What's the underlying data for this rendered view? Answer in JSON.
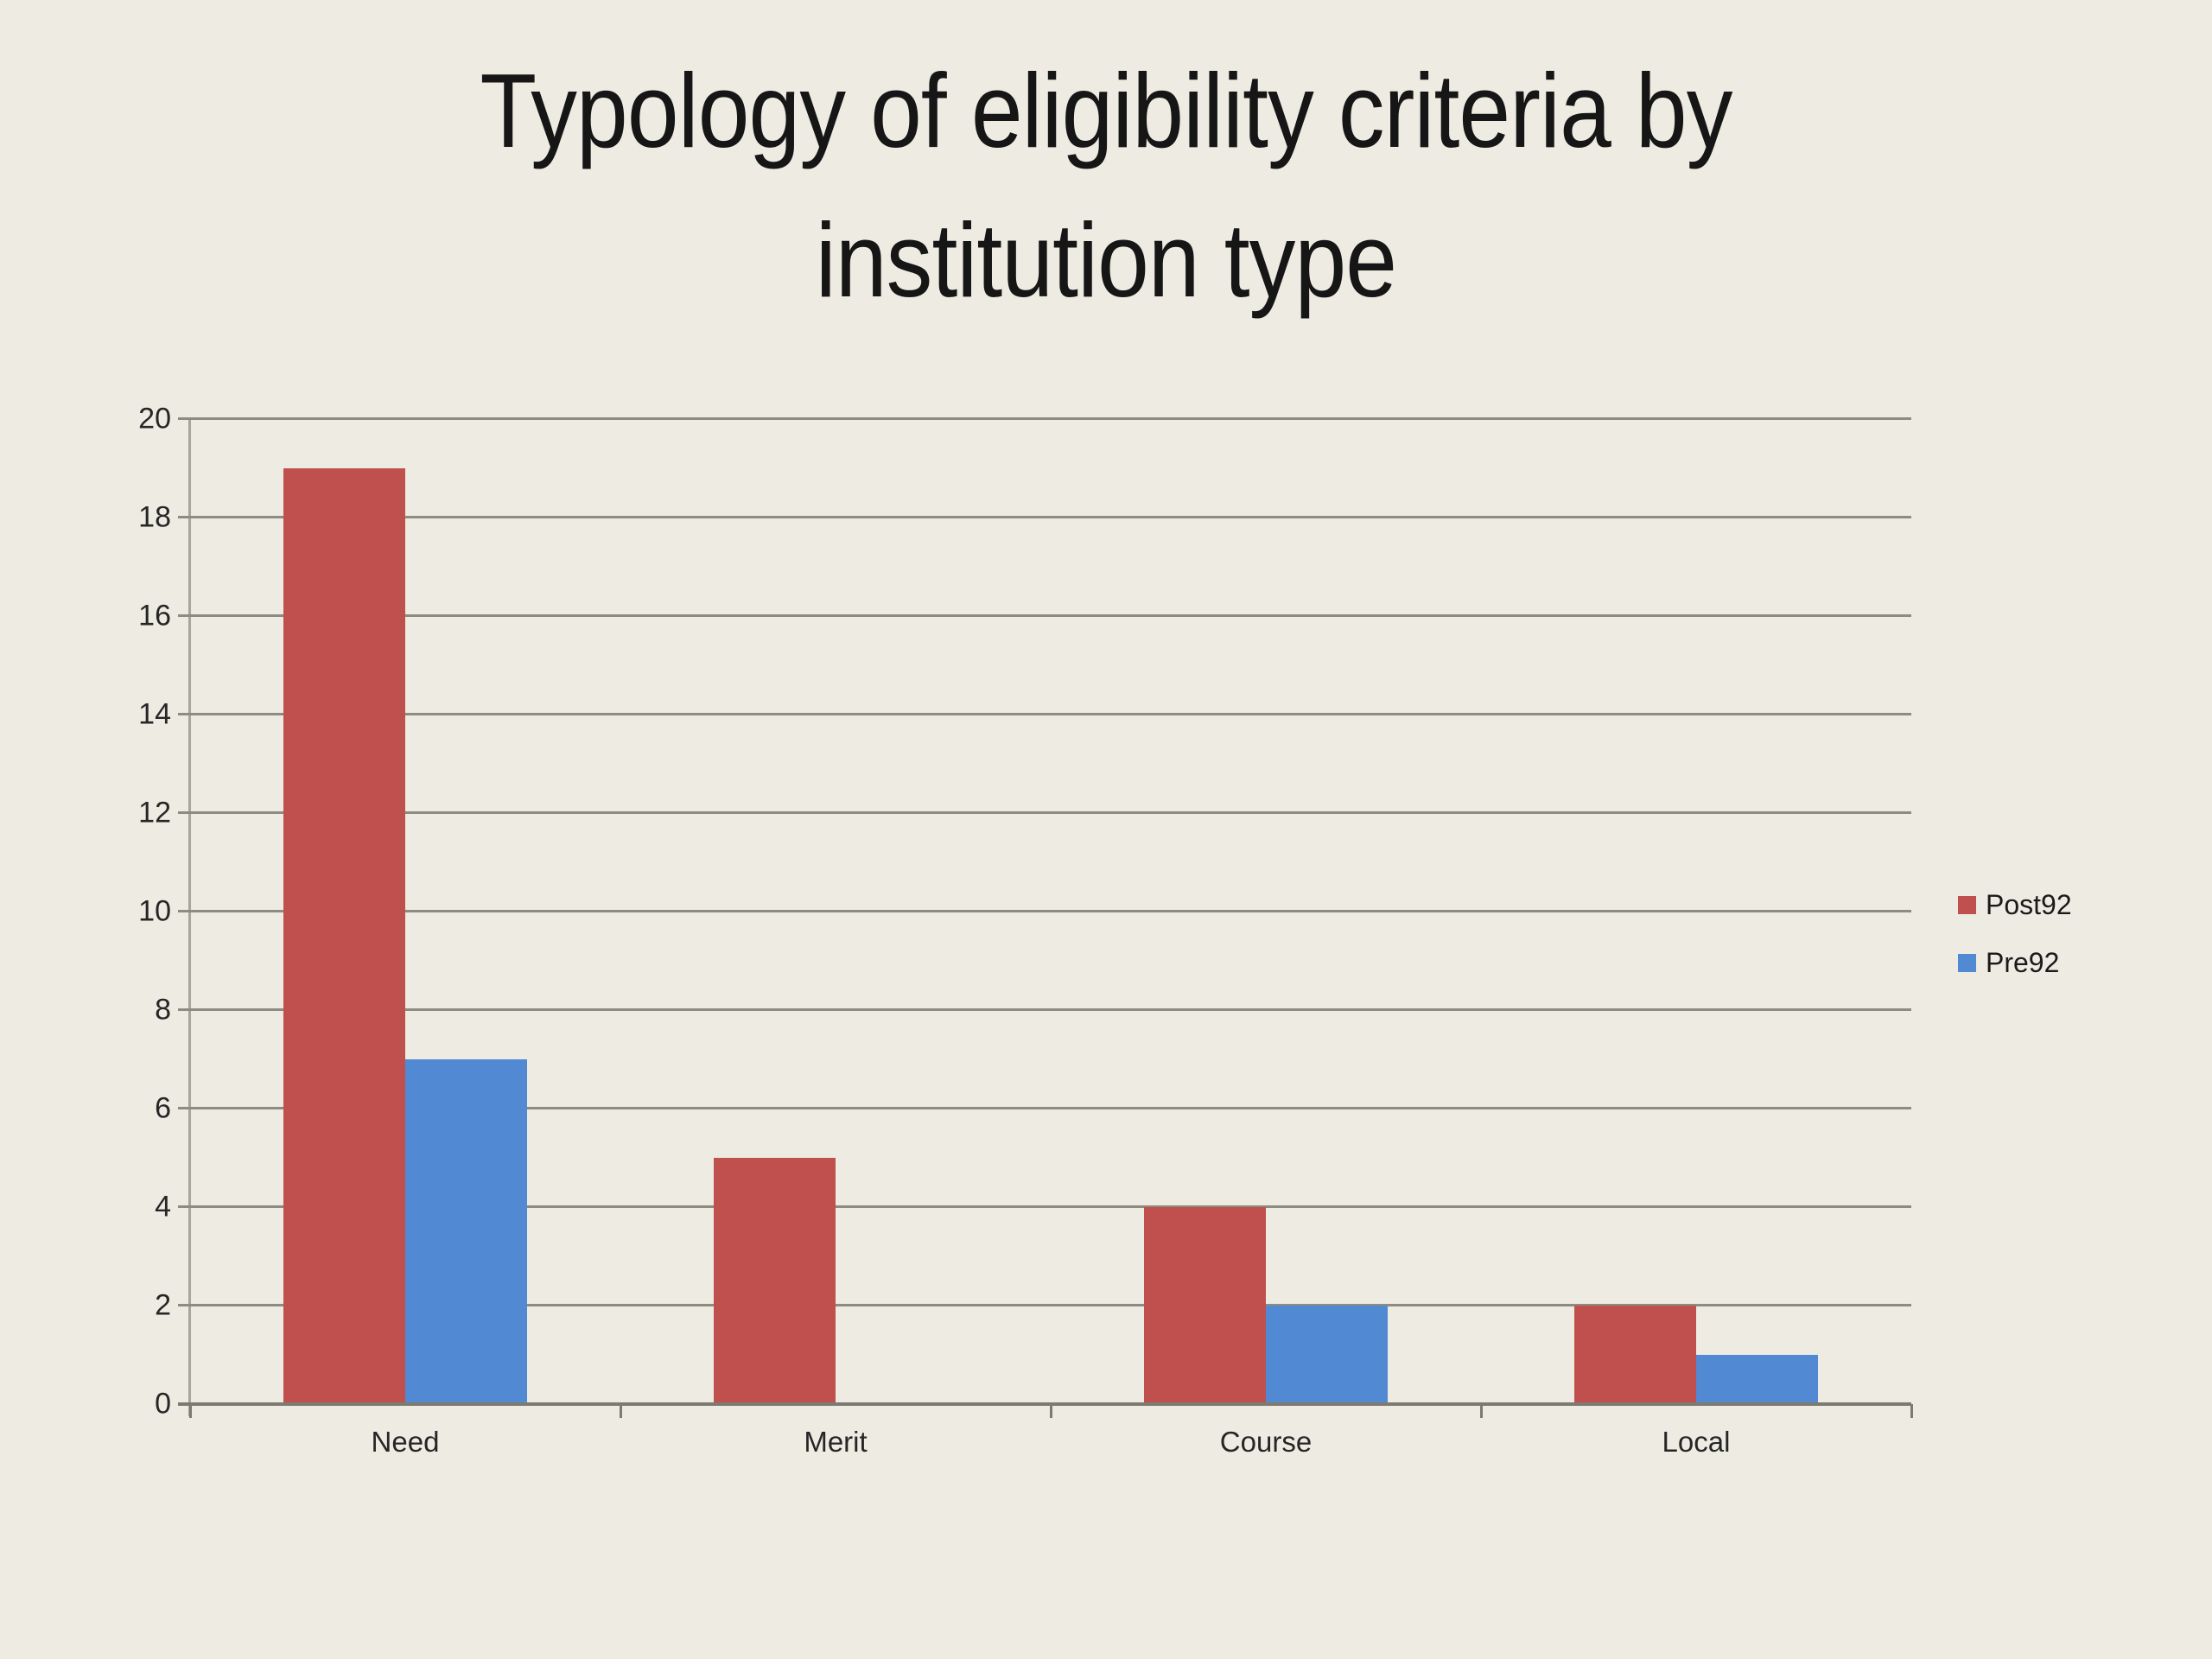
{
  "title": {
    "text": "Typology of eligibility criteria by institution type",
    "lines": [
      "Typology of eligibility criteria by",
      "institution type"
    ]
  },
  "colors": {
    "background": "#eeece2",
    "gridline": "#8e8c80",
    "axis": "#7d7b71",
    "post92_red": "#c0504d",
    "pre92_blue": "#5289d3",
    "text": "#262626"
  },
  "chart_data": {
    "type": "bar",
    "title": "Typology of eligibility criteria by institution type",
    "categories": [
      "Need",
      "Merit",
      "Course",
      "Local"
    ],
    "series": [
      {
        "name": "Post92",
        "color": "#c0504d",
        "values": [
          19,
          5,
          4,
          2
        ]
      },
      {
        "name": "Pre92",
        "color": "#5289d3",
        "values": [
          7,
          0,
          2,
          1
        ]
      }
    ],
    "xlabel": "",
    "ylabel": "",
    "ylim": [
      0,
      20
    ],
    "ytick_step": 2,
    "ytick_labels": [
      "0",
      "2",
      "4",
      "6",
      "8",
      "10",
      "12",
      "14",
      "16",
      "18",
      "20"
    ],
    "grid": true,
    "legend_position": "right"
  }
}
